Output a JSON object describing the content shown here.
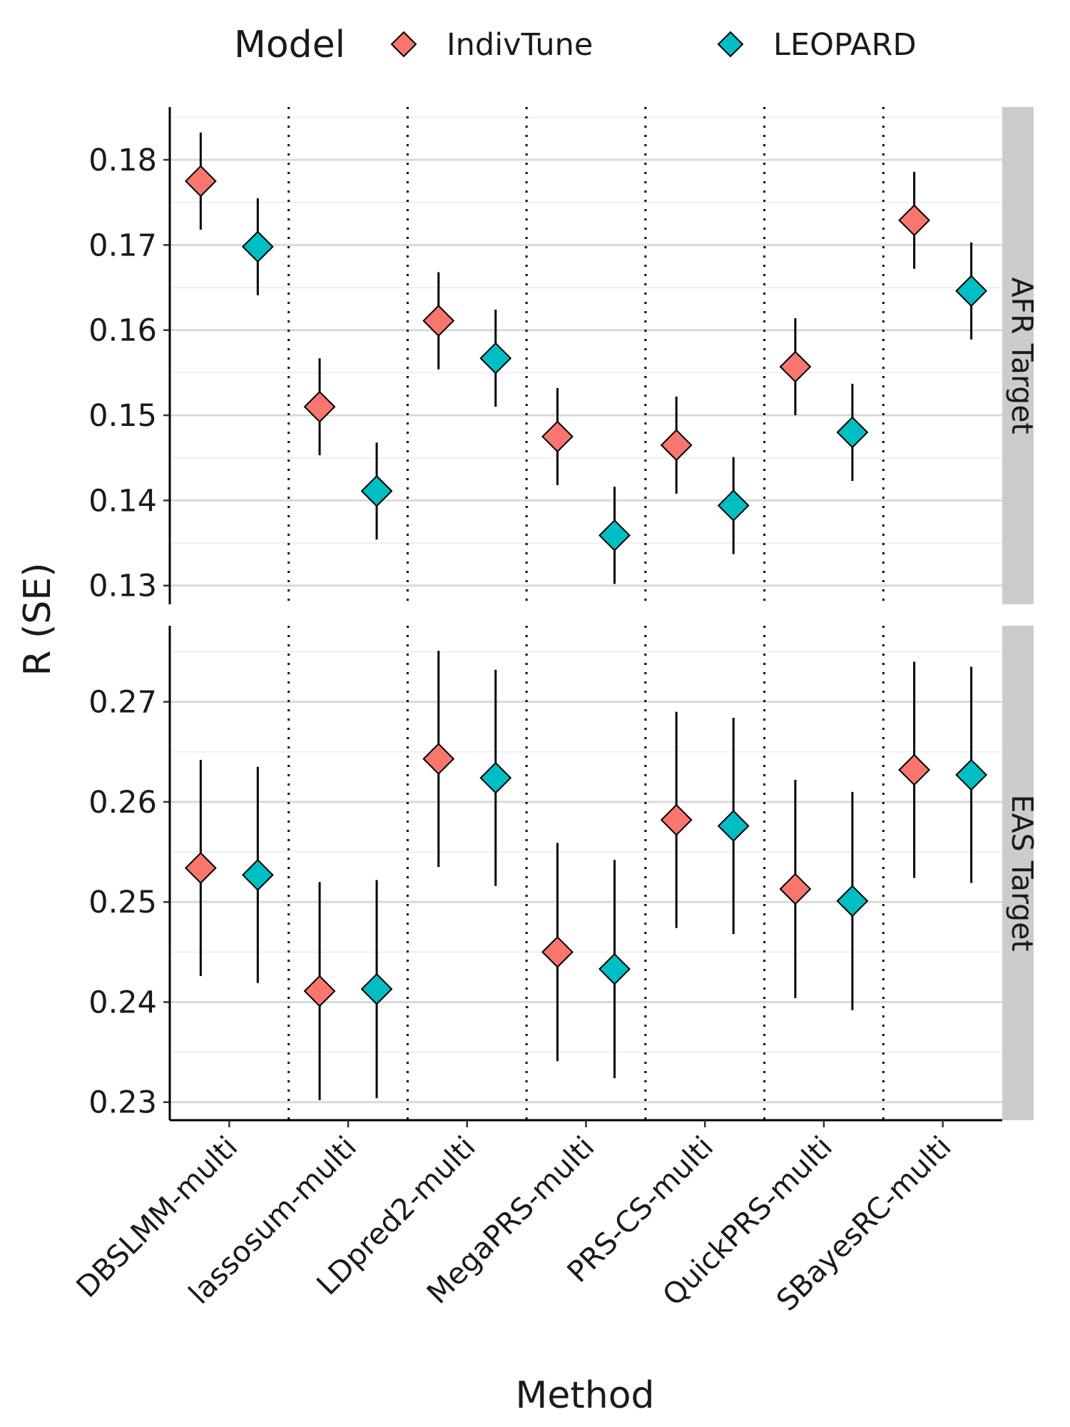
{
  "chart_data": {
    "type": "scatter",
    "legend": {
      "title": "Model",
      "position": "top"
    },
    "xlabel": "Method",
    "ylabel": "R (SE)",
    "categories": [
      "DBSLMM-multi",
      "lassosum-multi",
      "LDpred2-multi",
      "MegaPRS-multi",
      "PRS-CS-multi",
      "QuickPRS-multi",
      "SBayesRC-multi"
    ],
    "series_colors": {
      "IndivTune": "#F8766D",
      "LEOPARD": "#00BFC4"
    },
    "panels": [
      {
        "label": "AFR Target",
        "ylim": [
          0.1278,
          0.1862
        ],
        "yticks": [
          "0.13",
          "0.14",
          "0.15",
          "0.16",
          "0.17",
          "0.18"
        ],
        "series": [
          {
            "name": "IndivTune",
            "values": [
              0.1775,
              0.151,
              0.1611,
              0.1475,
              0.1465,
              0.1557,
              0.1729
            ],
            "se": [
              0.0057,
              0.0057,
              0.0057,
              0.0057,
              0.0057,
              0.0057,
              0.0057
            ]
          },
          {
            "name": "LEOPARD",
            "values": [
              0.1698,
              0.1411,
              0.1567,
              0.1359,
              0.1394,
              0.148,
              0.1646
            ],
            "se": [
              0.0057,
              0.0057,
              0.0057,
              0.0057,
              0.0057,
              0.0057,
              0.0057
            ]
          }
        ]
      },
      {
        "label": "EAS Target",
        "ylim": [
          0.2282,
          0.2776
        ],
        "yticks": [
          "0.23",
          "0.24",
          "0.25",
          "0.26",
          "0.27"
        ],
        "series": [
          {
            "name": "IndivTune",
            "values": [
              0.2534,
              0.2411,
              0.2643,
              0.245,
              0.2582,
              0.2513,
              0.2632
            ],
            "se": [
              0.0108,
              0.0109,
              0.0108,
              0.0109,
              0.0108,
              0.0109,
              0.0108
            ]
          },
          {
            "name": "LEOPARD",
            "values": [
              0.2527,
              0.2413,
              0.2624,
              0.2433,
              0.2576,
              0.2501,
              0.2627
            ],
            "se": [
              0.0108,
              0.0109,
              0.0108,
              0.0109,
              0.0108,
              0.0109,
              0.0108
            ]
          }
        ]
      }
    ]
  }
}
